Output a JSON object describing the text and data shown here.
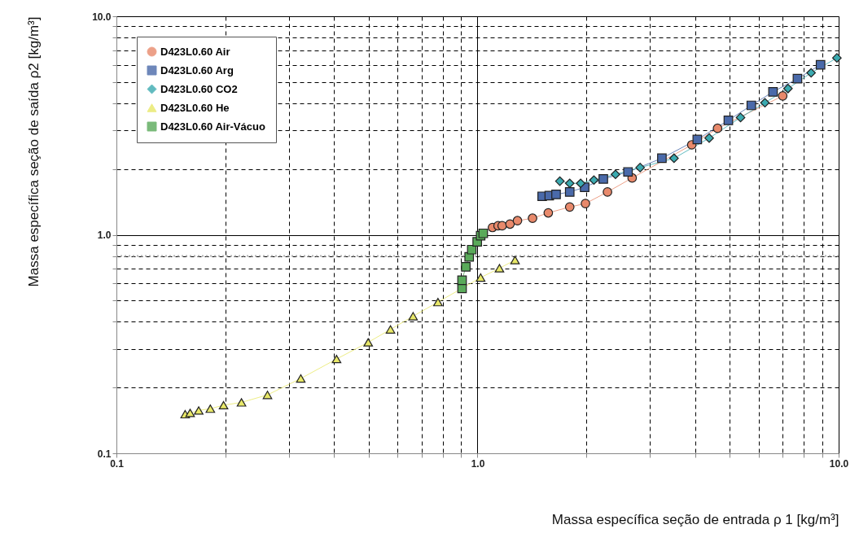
{
  "chart_data": {
    "type": "line",
    "xlabel": "Massa específica seção de entrada ρ 1  [kg/m³]",
    "ylabel": "Massa específica seção de  saída    ρ2  [kg/m³]",
    "xlim": [
      0.1,
      10
    ],
    "ylim": [
      0.1,
      10
    ],
    "log": "xy",
    "grid": true,
    "legend": "top left",
    "xticks": [
      {
        "value": 0.1,
        "label": "0.1"
      },
      {
        "value": 0.2,
        "label": null
      },
      {
        "value": 0.3,
        "label": null
      },
      {
        "value": 0.4,
        "label": null
      },
      {
        "value": 0.5,
        "label": null
      },
      {
        "value": 0.6,
        "label": null
      },
      {
        "value": 0.7,
        "label": null
      },
      {
        "value": 0.8,
        "label": null
      },
      {
        "value": 0.9,
        "label": null
      },
      {
        "value": 1,
        "label": "1.0"
      },
      {
        "value": 2,
        "label": null
      },
      {
        "value": 3,
        "label": null
      },
      {
        "value": 4,
        "label": null
      },
      {
        "value": 5,
        "label": null
      },
      {
        "value": 6,
        "label": null
      },
      {
        "value": 7,
        "label": null
      },
      {
        "value": 8,
        "label": null
      },
      {
        "value": 9,
        "label": null
      },
      {
        "value": 10,
        "label": "10.0"
      }
    ],
    "yticks": [
      {
        "value": 0.1,
        "label": "0.1"
      },
      {
        "value": 0.2,
        "label": null
      },
      {
        "value": 0.3,
        "label": null
      },
      {
        "value": 0.4,
        "label": null
      },
      {
        "value": 0.5,
        "label": null
      },
      {
        "value": 0.6,
        "label": null
      },
      {
        "value": 0.7,
        "label": null
      },
      {
        "value": 0.8,
        "label": null
      },
      {
        "value": 0.9,
        "label": null
      },
      {
        "value": 1,
        "label": "1.0"
      },
      {
        "value": 2,
        "label": null
      },
      {
        "value": 3,
        "label": null
      },
      {
        "value": 4,
        "label": null
      },
      {
        "value": 5,
        "label": null
      },
      {
        "value": 6,
        "label": null
      },
      {
        "value": 7,
        "label": null
      },
      {
        "value": 8,
        "label": null
      },
      {
        "value": 9,
        "label": null
      },
      {
        "value": 10,
        "label": "10.0"
      }
    ],
    "ref_lines": [
      {
        "axis": "y",
        "value": 0.8,
        "color": "#b0b0b0",
        "line_style": "dotted"
      }
    ],
    "series": [
      {
        "name": "D423L0.60 Air",
        "color": "#e8896b",
        "marker": "circle",
        "x": [
          1.1,
          1.14,
          1.17,
          1.23,
          1.29,
          1.42,
          1.57,
          1.8,
          1.99,
          2.29,
          2.68,
          3.92,
          4.62,
          7.0
        ],
        "values": [
          1.08,
          1.1,
          1.1,
          1.12,
          1.16,
          1.19,
          1.26,
          1.34,
          1.39,
          1.57,
          1.82,
          2.58,
          3.07,
          4.32
        ]
      },
      {
        "name": "D423L0.60 Arg",
        "color": "#4a6aaa",
        "marker": "square",
        "x": [
          1.51,
          1.58,
          1.65,
          1.8,
          1.98,
          2.23,
          2.61,
          3.24,
          4.06,
          4.95,
          5.73,
          6.58,
          7.69,
          8.91
        ],
        "values": [
          1.5,
          1.51,
          1.53,
          1.57,
          1.65,
          1.8,
          1.94,
          2.24,
          2.73,
          3.34,
          3.91,
          4.51,
          5.18,
          6.0
        ]
      },
      {
        "name": "D423L0.60 CO2",
        "color": "#3aaab0",
        "marker": "diamond",
        "x": [
          1.69,
          1.8,
          1.93,
          2.1,
          2.41,
          2.82,
          3.5,
          4.38,
          5.35,
          6.25,
          7.24,
          8.39,
          9.89
        ],
        "values": [
          1.76,
          1.72,
          1.72,
          1.78,
          1.89,
          2.03,
          2.24,
          2.77,
          3.44,
          4.02,
          4.67,
          5.51,
          6.45
        ]
      },
      {
        "name": "D423L0.60 He",
        "color": "#e8e868",
        "marker": "triangle",
        "x": [
          0.155,
          0.16,
          0.169,
          0.182,
          0.198,
          0.222,
          0.262,
          0.324,
          0.407,
          0.498,
          0.574,
          0.663,
          0.777,
          1.02,
          1.15,
          1.27
        ],
        "values": [
          0.151,
          0.153,
          0.157,
          0.16,
          0.166,
          0.171,
          0.185,
          0.22,
          0.27,
          0.322,
          0.369,
          0.424,
          0.492,
          0.637,
          0.703,
          0.766
        ]
      },
      {
        "name": "D423L0.60 Air-Vácuo",
        "color": "#5aaa5a",
        "marker": "square",
        "x": [
          0.906,
          0.906,
          0.928,
          0.948,
          0.964,
          0.998,
          1.02,
          1.037
        ],
        "values": [
          0.568,
          0.619,
          0.714,
          0.793,
          0.855,
          0.928,
          0.99,
          1.015
        ]
      }
    ]
  }
}
